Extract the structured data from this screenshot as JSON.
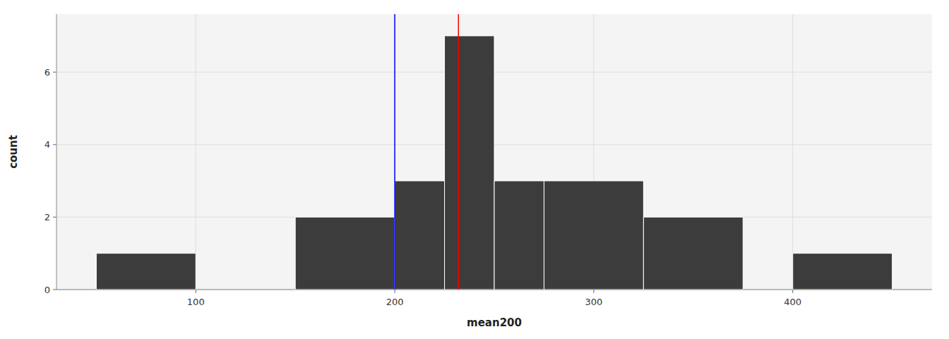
{
  "chart_data": {
    "type": "histogram",
    "xlabel": "mean200",
    "ylabel": "count",
    "bins": [
      50,
      100,
      150,
      200,
      225,
      250,
      275,
      325,
      375,
      400,
      450
    ],
    "values": [
      1,
      0,
      2,
      3,
      7,
      3,
      3,
      2,
      0,
      1
    ],
    "color": "#3C3C3C",
    "xlim": [
      30,
      470
    ],
    "ylim": [
      0,
      7.6
    ],
    "xticks": [
      100,
      200,
      300,
      400
    ],
    "yticks": [
      0,
      2,
      4,
      6
    ],
    "grid": true,
    "vlines": [
      {
        "x": 200,
        "color": "blue"
      },
      {
        "x": 232,
        "color": "red"
      }
    ]
  }
}
